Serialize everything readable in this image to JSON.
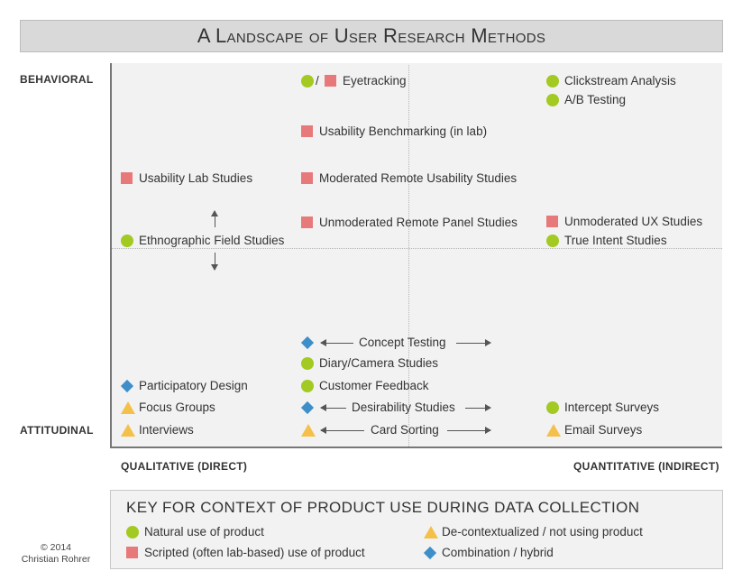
{
  "title": "A Landscape of User Research Methods",
  "axes": {
    "y_top": "BEHAVIORAL",
    "y_bottom": "ATTITUDINAL",
    "x_left": "QUALITATIVE (DIRECT)",
    "x_right": "QUANTITATIVE (INDIRECT)"
  },
  "methods": {
    "eyetracking": "Eyetracking",
    "slash": "/",
    "clickstream": "Clickstream Analysis",
    "ab_testing": "A/B Testing",
    "usability_benchmarking": "Usability Benchmarking (in lab)",
    "usability_lab": "Usability Lab Studies",
    "moderated_remote": "Moderated Remote Usability Studies",
    "unmoderated_panel": "Unmoderated Remote Panel Studies",
    "unmoderated_ux": "Unmoderated UX Studies",
    "ethnographic": "Ethnographic Field Studies",
    "true_intent": "True Intent Studies",
    "concept_testing": "Concept Testing",
    "diary": "Diary/Camera Studies",
    "customer_feedback": "Customer Feedback",
    "participatory": "Participatory Design",
    "focus_groups": "Focus Groups",
    "desirability": "Desirability Studies",
    "intercept": "Intercept Surveys",
    "interviews": "Interviews",
    "card_sorting": "Card Sorting",
    "email_surveys": "Email Surveys"
  },
  "key": {
    "title": "KEY FOR CONTEXT OF PRODUCT USE DURING DATA COLLECTION",
    "natural": "Natural use of product",
    "scripted": "Scripted (often lab-based) use of product",
    "decontextualized": "De-contextualized / not using product",
    "combination": "Combination / hybrid"
  },
  "colors": {
    "natural": "#a3c923",
    "scripted": "#e8797a",
    "decontextualized": "#f4c04a",
    "combination": "#3d8ec9"
  },
  "copyright": {
    "line1": "© 2014",
    "line2": "Christian Rohrer"
  }
}
